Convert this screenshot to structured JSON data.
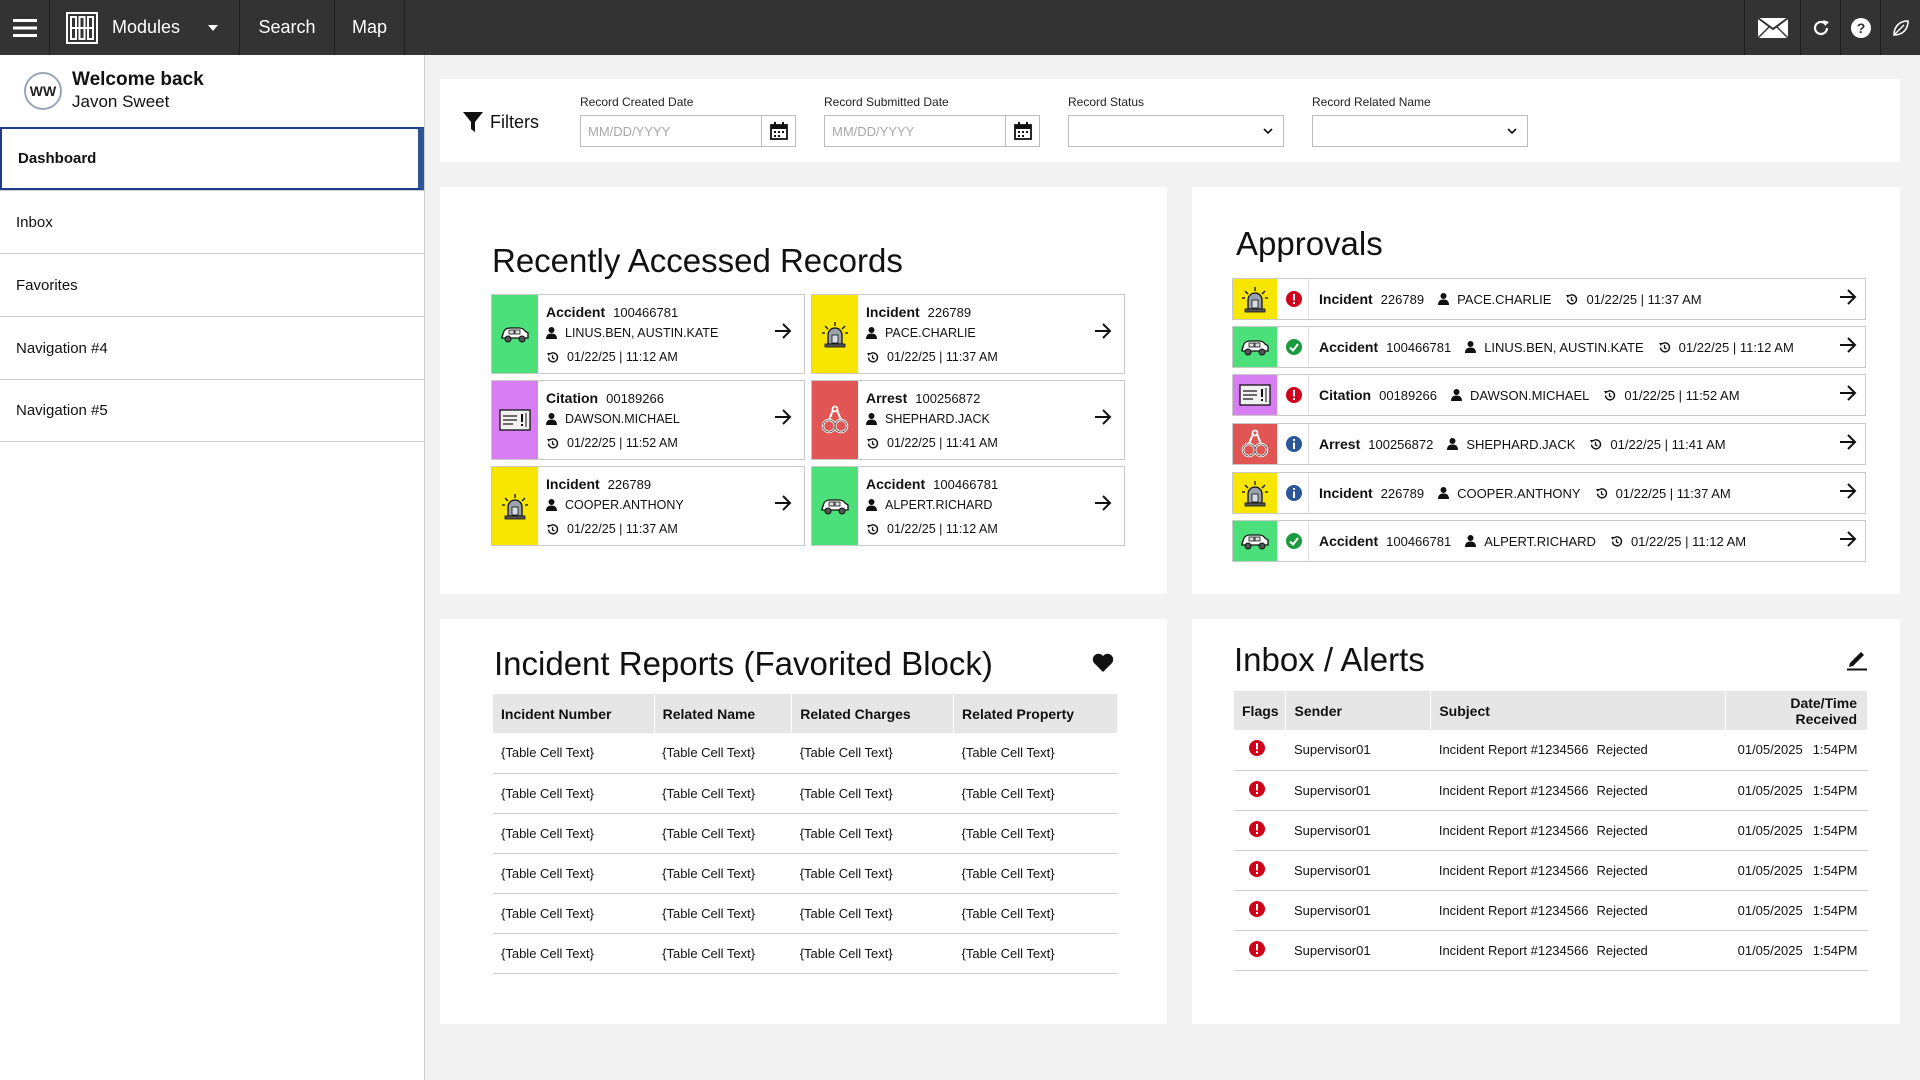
{
  "topbar": {
    "menu_icon": "hamburger-icon",
    "modules_label": "Modules",
    "search_label": "Search",
    "map_label": "Map",
    "right_icons": [
      "mail-icon",
      "refresh-icon",
      "help-icon",
      "leaf-icon"
    ]
  },
  "sidebar": {
    "avatar_initials": "WW",
    "welcome_title": "Welcome back",
    "welcome_name": "Javon Sweet",
    "items": [
      {
        "label": "Dashboard",
        "active": true
      },
      {
        "label": "Inbox"
      },
      {
        "label": "Favorites"
      },
      {
        "label": "Navigation #4"
      },
      {
        "label": "Navigation #5"
      }
    ]
  },
  "filters": {
    "title": "Filters",
    "created_label": "Record Created Date",
    "created_placeholder": "MM/DD/YYYY",
    "submitted_label": "Record Submitted Date",
    "submitted_placeholder": "MM/DD/YYYY",
    "status_label": "Record Status",
    "related_label": "Record Related Name"
  },
  "recent": {
    "title": "Recently Accessed Records",
    "cards": [
      {
        "type": "Accident",
        "number": "100466781",
        "names": "LINUS.BEN, AUSTIN.KATE",
        "date": "01/22/25 | 11:12 AM",
        "icon": "car-icon",
        "color": "#4be07a"
      },
      {
        "type": "Incident",
        "number": "226789",
        "names": "PACE.CHARLIE",
        "date": "01/22/25 | 11:37 AM",
        "icon": "siren-icon",
        "color": "#f7e600"
      },
      {
        "type": "Citation",
        "number": "00189266",
        "names": "DAWSON.MICHAEL",
        "date": "01/22/25 | 11:52 AM",
        "icon": "citation-icon",
        "color": "#d67ef2"
      },
      {
        "type": "Arrest",
        "number": "100256872",
        "names": "SHEPHARD.JACK",
        "date": "01/22/25 | 11:41 AM",
        "icon": "handcuffs-icon",
        "color": "#e25555"
      },
      {
        "type": "Incident",
        "number": "226789",
        "names": "COOPER.ANTHONY",
        "date": "01/22/25 | 11:37 AM",
        "icon": "siren-icon",
        "color": "#f7e600"
      },
      {
        "type": "Accident",
        "number": "100466781",
        "names": "ALPERT.RICHARD",
        "date": "01/22/25 | 11:12 AM",
        "icon": "car-icon",
        "color": "#4be07a"
      }
    ]
  },
  "approvals": {
    "title": "Approvals",
    "rows": [
      {
        "type": "Incident",
        "number": "226789",
        "names": "PACE.CHARLIE",
        "date": "01/22/25 | 11:37 AM",
        "icon": "siren-icon",
        "color": "#f7e600",
        "status": "alert",
        "status_icon": "alert-icon"
      },
      {
        "type": "Accident",
        "number": "100466781",
        "names": "LINUS.BEN, AUSTIN.KATE",
        "date": "01/22/25 | 11:12 AM",
        "icon": "car-icon",
        "color": "#4be07a",
        "status": "approved",
        "status_icon": "check-icon"
      },
      {
        "type": "Citation",
        "number": "00189266",
        "names": "DAWSON.MICHAEL",
        "date": "01/22/25 | 11:52 AM",
        "icon": "citation-icon",
        "color": "#d67ef2",
        "status": "alert",
        "status_icon": "alert-icon"
      },
      {
        "type": "Arrest",
        "number": "100256872",
        "names": "SHEPHARD.JACK",
        "date": "01/22/25 | 11:41 AM",
        "icon": "handcuffs-icon",
        "color": "#e25555",
        "status": "info",
        "status_icon": "info-icon"
      },
      {
        "type": "Incident",
        "number": "226789",
        "names": "COOPER.ANTHONY",
        "date": "01/22/25 | 11:37 AM",
        "icon": "siren-icon",
        "color": "#f7e600",
        "status": "info",
        "status_icon": "info-icon"
      },
      {
        "type": "Accident",
        "number": "100466781",
        "names": "ALPERT.RICHARD",
        "date": "01/22/25 | 11:12 AM",
        "icon": "car-icon",
        "color": "#4be07a",
        "status": "approved",
        "status_icon": "check-icon"
      }
    ]
  },
  "incident_reports": {
    "title": "Incident Reports (Favorited Block)",
    "headers": [
      "Incident Number",
      "Related Name",
      "Related Charges",
      "Related Property"
    ],
    "rows": [
      [
        "{Table Cell Text}",
        "{Table Cell Text}",
        "{Table Cell Text}",
        "{Table Cell Text}"
      ],
      [
        "{Table Cell Text}",
        "{Table Cell Text}",
        "{Table Cell Text}",
        "{Table Cell Text}"
      ],
      [
        "{Table Cell Text}",
        "{Table Cell Text}",
        "{Table Cell Text}",
        "{Table Cell Text}"
      ],
      [
        "{Table Cell Text}",
        "{Table Cell Text}",
        "{Table Cell Text}",
        "{Table Cell Text}"
      ],
      [
        "{Table Cell Text}",
        "{Table Cell Text}",
        "{Table Cell Text}",
        "{Table Cell Text}"
      ],
      [
        "{Table Cell Text}",
        "{Table Cell Text}",
        "{Table Cell Text}",
        "{Table Cell Text}"
      ]
    ]
  },
  "inbox": {
    "title": "Inbox / Alerts",
    "headers": [
      "Flags",
      "Sender",
      "Subject",
      "Date/Time Received"
    ],
    "rows": [
      {
        "sender": "Supervisor01",
        "subject": "Incident Report #1234566",
        "status": "Rejected",
        "date": "01/05/2025",
        "time": "1:54PM"
      },
      {
        "sender": "Supervisor01",
        "subject": "Incident Report #1234566",
        "status": "Rejected",
        "date": "01/05/2025",
        "time": "1:54PM"
      },
      {
        "sender": "Supervisor01",
        "subject": "Incident Report #1234566",
        "status": "Rejected",
        "date": "01/05/2025",
        "time": "1:54PM"
      },
      {
        "sender": "Supervisor01",
        "subject": "Incident Report #1234566",
        "status": "Rejected",
        "date": "01/05/2025",
        "time": "1:54PM"
      },
      {
        "sender": "Supervisor01",
        "subject": "Incident Report #1234566",
        "status": "Rejected",
        "date": "01/05/2025",
        "time": "1:54PM"
      },
      {
        "sender": "Supervisor01",
        "subject": "Incident Report #1234566",
        "status": "Rejected",
        "date": "01/05/2025",
        "time": "1:54PM"
      }
    ]
  },
  "colors": {
    "topbar": "#333333",
    "accent": "#2f5597",
    "alert": "#d0021b",
    "approved": "#1a9c3e",
    "info": "#2b579a"
  }
}
